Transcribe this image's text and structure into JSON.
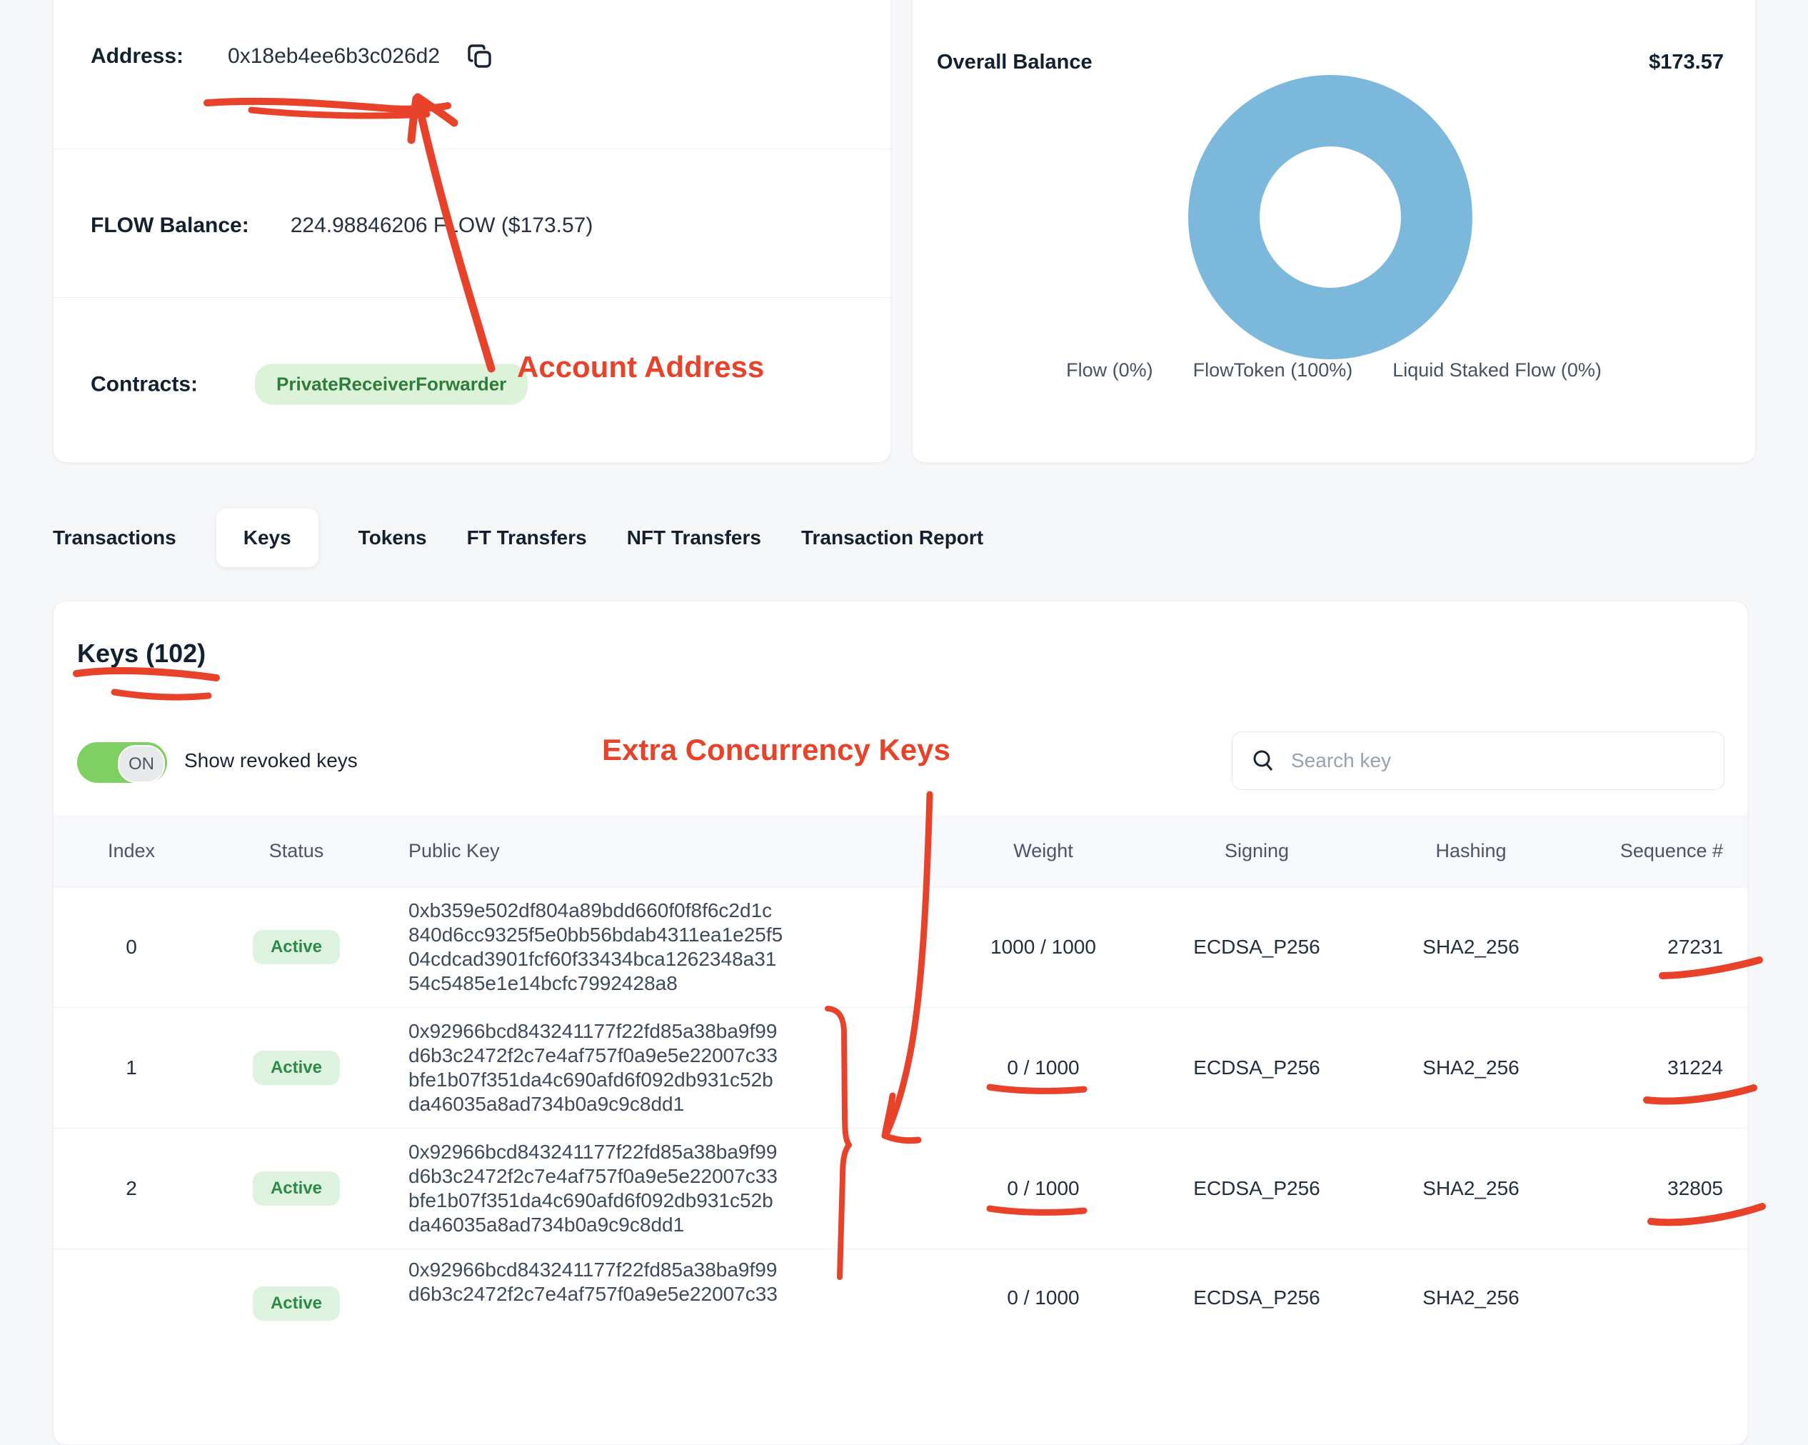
{
  "page": {
    "background": "#f6f7f9",
    "accent_red": "#e8432a"
  },
  "account_card": {
    "address_label": "Address:",
    "address_value": "0x18eb4ee6b3c026d2",
    "flow_balance_label": "FLOW Balance:",
    "flow_balance_value": "224.98846206 FLOW ($173.57)",
    "contracts_label": "Contracts:",
    "contract_badge": "PrivateReceiverForwarder"
  },
  "balance_card": {
    "title": "Overall Balance",
    "amount": "$173.57"
  },
  "chart_data": {
    "type": "pie",
    "title": "Overall Balance",
    "total_label": "$173.57",
    "categories": [
      "Flow",
      "FlowToken",
      "Liquid Staked Flow"
    ],
    "values": [
      0,
      100,
      0
    ],
    "legend": [
      "Flow (0%)",
      "FlowToken (100%)",
      "Liquid Staked Flow (0%)"
    ],
    "donut_color": "#7cb8dc",
    "legend_position": "bottom"
  },
  "tabs": [
    {
      "label": "Transactions",
      "active": false
    },
    {
      "label": "Keys",
      "active": true
    },
    {
      "label": "Tokens",
      "active": false
    },
    {
      "label": "FT Transfers",
      "active": false
    },
    {
      "label": "NFT Transfers",
      "active": false
    },
    {
      "label": "Transaction Report",
      "active": false
    }
  ],
  "keys_section": {
    "title": "Keys (102)",
    "toggle_state": "ON",
    "toggle_label": "Show revoked keys",
    "search_placeholder": "Search key",
    "table": {
      "headers": [
        "Index",
        "Status",
        "Public Key",
        "Weight",
        "Signing",
        "Hashing",
        "Sequence #"
      ],
      "rows": [
        {
          "index": "0",
          "status": "Active",
          "public_key_lines": [
            "0xb359e502df804a89bdd660f0f8f6c2d1c",
            "840d6cc9325f5e0bb56bdab4311ea1e25f5",
            "04cdcad3901fcf60f33434bca1262348a31",
            "54c5485e1e14bcfc7992428a8"
          ],
          "weight": "1000 / 1000",
          "signing": "ECDSA_P256",
          "hashing": "SHA2_256",
          "sequence": "27231",
          "partial": false
        },
        {
          "index": "1",
          "status": "Active",
          "public_key_lines": [
            "0x92966bcd843241177f22fd85a38ba9f99",
            "d6b3c2472f2c7e4af757f0a9e5e22007c33",
            "bfe1b07f351da4c690afd6f092db931c52b",
            "da46035a8ad734b0a9c9c8dd1"
          ],
          "weight": "0 / 1000",
          "signing": "ECDSA_P256",
          "hashing": "SHA2_256",
          "sequence": "31224",
          "partial": false
        },
        {
          "index": "2",
          "status": "Active",
          "public_key_lines": [
            "0x92966bcd843241177f22fd85a38ba9f99",
            "d6b3c2472f2c7e4af757f0a9e5e22007c33",
            "bfe1b07f351da4c690afd6f092db931c52b",
            "da46035a8ad734b0a9c9c8dd1"
          ],
          "weight": "0 / 1000",
          "signing": "ECDSA_P256",
          "hashing": "SHA2_256",
          "sequence": "32805",
          "partial": false
        },
        {
          "index": "",
          "status": "Active",
          "public_key_lines": [
            "0x92966bcd843241177f22fd85a38ba9f99",
            "d6b3c2472f2c7e4af757f0a9e5e22007c33"
          ],
          "weight": "0 / 1000",
          "signing": "ECDSA_P256",
          "hashing": "SHA2_256",
          "sequence": "",
          "partial": true
        }
      ]
    }
  },
  "annotations": {
    "account_address_label": "Account Address",
    "extra_keys_label": "Extra Concurrency Keys"
  }
}
